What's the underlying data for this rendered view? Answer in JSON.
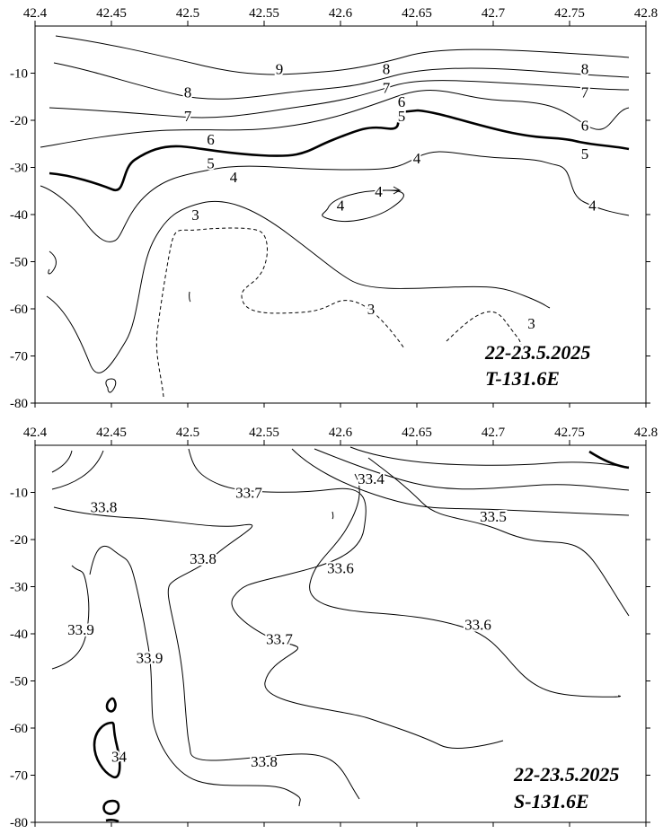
{
  "chart_data": [
    {
      "type": "contour",
      "title_lines": [
        "22-23.5.2025",
        "T-131.6E"
      ],
      "x_ticks": [
        "42.4",
        "42.45",
        "42.5",
        "42.55",
        "42.6",
        "42.65",
        "42.7",
        "42.75",
        "42.8"
      ],
      "y_ticks": [
        "-10",
        "-20",
        "-30",
        "-40",
        "-50",
        "-60",
        "-70",
        "-80"
      ],
      "xlim": [
        42.4,
        42.8
      ],
      "ylim": [
        -80,
        0
      ],
      "contour_labels": [
        {
          "text": "9",
          "x": 42.56,
          "y": -9
        },
        {
          "text": "8",
          "x": 42.5,
          "y": -14
        },
        {
          "text": "8",
          "x": 42.63,
          "y": -9
        },
        {
          "text": "8",
          "x": 42.76,
          "y": -9
        },
        {
          "text": "7",
          "x": 42.5,
          "y": -19
        },
        {
          "text": "7",
          "x": 42.63,
          "y": -13
        },
        {
          "text": "7",
          "x": 42.76,
          "y": -14
        },
        {
          "text": "6",
          "x": 42.515,
          "y": -24
        },
        {
          "text": "6",
          "x": 42.64,
          "y": -16
        },
        {
          "text": "6",
          "x": 42.76,
          "y": -21
        },
        {
          "text": "5",
          "x": 42.515,
          "y": -29
        },
        {
          "text": "5",
          "x": 42.64,
          "y": -19
        },
        {
          "text": "5",
          "x": 42.76,
          "y": -27
        },
        {
          "text": "4",
          "x": 42.53,
          "y": -32
        },
        {
          "text": "4",
          "x": 42.65,
          "y": -28
        },
        {
          "text": "4",
          "x": 42.6,
          "y": -38
        },
        {
          "text": "4",
          "x": 42.625,
          "y": -35
        },
        {
          "text": "4",
          "x": 42.765,
          "y": -38
        },
        {
          "text": "3",
          "x": 42.505,
          "y": -40
        },
        {
          "text": "3",
          "x": 42.62,
          "y": -60
        },
        {
          "text": "3",
          "x": 42.725,
          "y": -63
        }
      ]
    },
    {
      "type": "contour",
      "title_lines": [
        "22-23.5.2025",
        "S-131.6E"
      ],
      "x_ticks": [
        "42.4",
        "42.45",
        "42.5",
        "42.55",
        "42.6",
        "42.65",
        "42.7",
        "42.75",
        "42.8"
      ],
      "y_ticks": [
        "-10",
        "-20",
        "-30",
        "-40",
        "-50",
        "-60",
        "-70",
        "-80"
      ],
      "xlim": [
        42.4,
        42.8
      ],
      "ylim": [
        -80,
        0
      ],
      "contour_labels": [
        {
          "text": "33.4",
          "x": 42.62,
          "y": -7
        },
        {
          "text": "33.5",
          "x": 42.7,
          "y": -15
        },
        {
          "text": "33.6",
          "x": 42.6,
          "y": -26
        },
        {
          "text": "33.6",
          "x": 42.69,
          "y": -38
        },
        {
          "text": "33.7",
          "x": 42.54,
          "y": -10
        },
        {
          "text": "33.7",
          "x": 42.56,
          "y": -41
        },
        {
          "text": "33.8",
          "x": 42.445,
          "y": -13
        },
        {
          "text": "33.8",
          "x": 42.51,
          "y": -24
        },
        {
          "text": "33.8",
          "x": 42.55,
          "y": -67
        },
        {
          "text": "33.9",
          "x": 42.43,
          "y": -39
        },
        {
          "text": "33.9",
          "x": 42.475,
          "y": -45
        },
        {
          "text": "34",
          "x": 42.455,
          "y": -66
        }
      ]
    }
  ]
}
